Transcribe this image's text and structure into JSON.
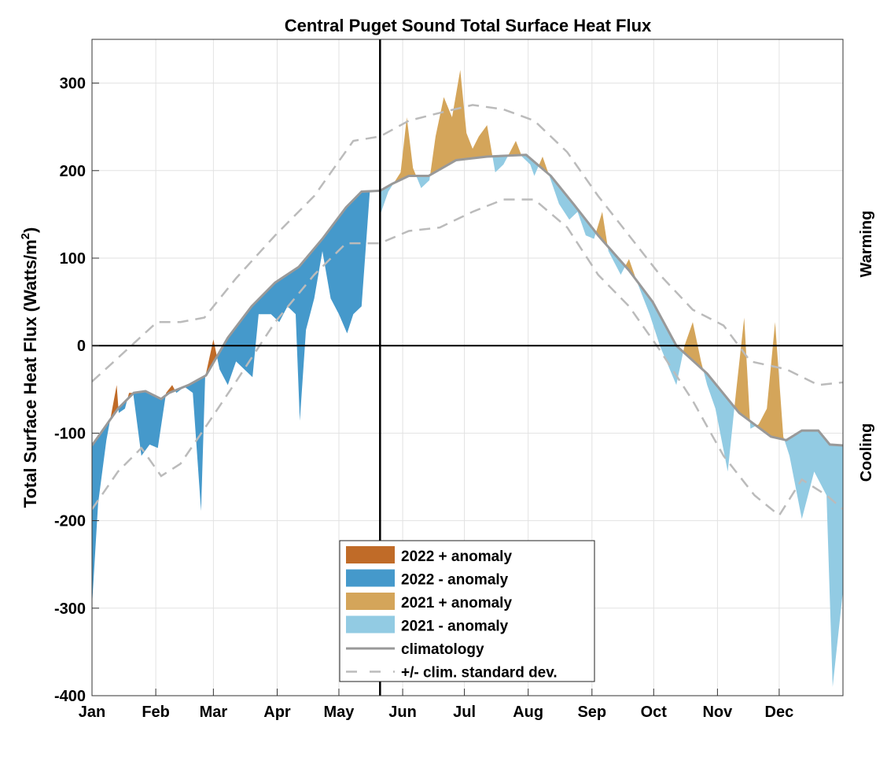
{
  "chart_data": {
    "type": "area",
    "title": "Central Puget Sound Total Surface Heat Flux",
    "ylabel": "Total Surface Heat Flux (Watts/m²)",
    "ylabel_main": "Total Surface Heat Flux (Watts/m",
    "ylabel_sup": "2",
    "ylabel_end": ")",
    "xlabel": "",
    "right_labels": {
      "warming": "Warming",
      "cooling": "Cooling"
    },
    "ylim": [
      -400,
      350
    ],
    "xlim": [
      0,
      365
    ],
    "yticks": [
      -400,
      -300,
      -200,
      -100,
      0,
      100,
      200,
      300
    ],
    "xticks": [
      {
        "day": 0,
        "label": "Jan"
      },
      {
        "day": 31,
        "label": "Feb"
      },
      {
        "day": 59,
        "label": "Mar"
      },
      {
        "day": 90,
        "label": "Apr"
      },
      {
        "day": 120,
        "label": "May"
      },
      {
        "day": 151,
        "label": "Jun"
      },
      {
        "day": 181,
        "label": "Jul"
      },
      {
        "day": 212,
        "label": "Aug"
      },
      {
        "day": 243,
        "label": "Sep"
      },
      {
        "day": 273,
        "label": "Oct"
      },
      {
        "day": 304,
        "label": "Nov"
      },
      {
        "day": 334,
        "label": "Dec"
      }
    ],
    "grid": true,
    "divider_day": 140,
    "colors": {
      "pos2022": "#C06B28",
      "neg2022": "#4599CB",
      "pos2021": "#D4A55A",
      "neg2021": "#92CBE3",
      "clim": "#999999",
      "std": "#BBBBBB"
    },
    "legend": {
      "placement": "bottom-center",
      "entries": [
        "2022 + anomaly",
        "2022 - anomaly",
        "2021 + anomaly",
        "2021 - anomaly",
        "climatology",
        "+/- clim. standard dev."
      ]
    },
    "climatology": [
      [
        0,
        -114
      ],
      [
        12.6,
        -72
      ],
      [
        20.3,
        -54
      ],
      [
        26,
        -52
      ],
      [
        33.6,
        -61
      ],
      [
        37.5,
        -54
      ],
      [
        47,
        -45
      ],
      [
        55.4,
        -34
      ],
      [
        66,
        9
      ],
      [
        77.6,
        45
      ],
      [
        89,
        72
      ],
      [
        100.5,
        90
      ],
      [
        112,
        122
      ],
      [
        123.5,
        158
      ],
      [
        131,
        176
      ],
      [
        140,
        177
      ],
      [
        146,
        185
      ],
      [
        154,
        194
      ],
      [
        163.6,
        194
      ],
      [
        177,
        212
      ],
      [
        192,
        216
      ],
      [
        211,
        218
      ],
      [
        223,
        194
      ],
      [
        234,
        162
      ],
      [
        246,
        126
      ],
      [
        261,
        86
      ],
      [
        272.5,
        50
      ],
      [
        284,
        0
      ],
      [
        299,
        -32
      ],
      [
        314.6,
        -77
      ],
      [
        330,
        -104
      ],
      [
        337.5,
        -108
      ],
      [
        345,
        -97
      ],
      [
        353,
        -97
      ],
      [
        358.6,
        -113
      ],
      [
        365,
        -114
      ]
    ],
    "std_upper": [
      [
        0,
        -41
      ],
      [
        12.6,
        -14
      ],
      [
        31.6,
        27
      ],
      [
        43,
        27
      ],
      [
        54.6,
        32
      ],
      [
        70,
        77
      ],
      [
        89,
        126
      ],
      [
        108,
        171
      ],
      [
        127,
        234
      ],
      [
        140,
        239
      ],
      [
        154,
        257
      ],
      [
        169,
        266
      ],
      [
        185,
        275
      ],
      [
        200,
        270
      ],
      [
        215,
        257
      ],
      [
        231,
        221
      ],
      [
        246,
        171
      ],
      [
        261,
        126
      ],
      [
        276,
        81
      ],
      [
        292,
        41
      ],
      [
        307,
        23
      ],
      [
        320,
        -18
      ],
      [
        337.5,
        -27
      ],
      [
        353,
        -45
      ],
      [
        365,
        -42
      ]
    ],
    "std_lower": [
      [
        0,
        -187
      ],
      [
        12.6,
        -144
      ],
      [
        24,
        -117
      ],
      [
        33.6,
        -149
      ],
      [
        43,
        -135
      ],
      [
        54.6,
        -95
      ],
      [
        70,
        -41
      ],
      [
        89,
        27
      ],
      [
        108,
        81
      ],
      [
        123.5,
        117
      ],
      [
        140,
        117
      ],
      [
        154,
        131
      ],
      [
        169,
        135
      ],
      [
        185,
        153
      ],
      [
        200,
        167
      ],
      [
        215,
        167
      ],
      [
        231,
        135
      ],
      [
        246,
        81
      ],
      [
        261,
        45
      ],
      [
        276,
        -5
      ],
      [
        292,
        -63
      ],
      [
        307,
        -126
      ],
      [
        322,
        -171
      ],
      [
        334,
        -194
      ],
      [
        345,
        -153
      ],
      [
        357,
        -171
      ],
      [
        365,
        -187
      ]
    ],
    "series_2022": [
      [
        0,
        -297
      ],
      [
        3,
        -180
      ],
      [
        7,
        -108
      ],
      [
        12,
        -45
      ],
      [
        13,
        -77
      ],
      [
        16,
        -72
      ],
      [
        18,
        -54
      ],
      [
        20,
        -54
      ],
      [
        24,
        -126
      ],
      [
        28,
        -113
      ],
      [
        32,
        -117
      ],
      [
        36,
        -54
      ],
      [
        39,
        -45
      ],
      [
        41,
        -54
      ],
      [
        45,
        -47
      ],
      [
        49,
        -54
      ],
      [
        53,
        -189
      ],
      [
        55,
        -36
      ],
      [
        59,
        7
      ],
      [
        62,
        -27
      ],
      [
        66,
        -45
      ],
      [
        70,
        -18
      ],
      [
        74,
        -27
      ],
      [
        78,
        -36
      ],
      [
        81,
        36
      ],
      [
        87,
        36
      ],
      [
        91,
        27
      ],
      [
        95,
        45
      ],
      [
        99,
        36
      ],
      [
        101,
        -86
      ],
      [
        104,
        18
      ],
      [
        108,
        54
      ],
      [
        112,
        108
      ],
      [
        116,
        54
      ],
      [
        120,
        36
      ],
      [
        124,
        14
      ],
      [
        127,
        36
      ],
      [
        131,
        45
      ],
      [
        135,
        175
      ],
      [
        140,
        177
      ]
    ],
    "series_2021": [
      [
        140,
        149
      ],
      [
        144,
        176
      ],
      [
        150,
        198
      ],
      [
        153,
        261
      ],
      [
        156,
        203
      ],
      [
        160,
        180
      ],
      [
        164,
        189
      ],
      [
        167,
        239
      ],
      [
        171,
        284
      ],
      [
        175,
        261
      ],
      [
        179,
        315
      ],
      [
        182,
        243
      ],
      [
        185,
        225
      ],
      [
        188,
        239
      ],
      [
        192,
        252
      ],
      [
        196,
        198
      ],
      [
        200,
        207
      ],
      [
        206,
        234
      ],
      [
        209,
        216
      ],
      [
        213,
        207
      ],
      [
        215,
        194
      ],
      [
        219,
        216
      ],
      [
        223,
        189
      ],
      [
        227,
        162
      ],
      [
        232,
        144
      ],
      [
        236,
        153
      ],
      [
        240,
        126
      ],
      [
        244,
        122
      ],
      [
        248,
        153
      ],
      [
        251,
        108
      ],
      [
        257,
        81
      ],
      [
        261,
        99
      ],
      [
        265,
        72
      ],
      [
        271,
        36
      ],
      [
        276,
        0
      ],
      [
        284,
        -45
      ],
      [
        288,
        0
      ],
      [
        292,
        27
      ],
      [
        296,
        -18
      ],
      [
        299,
        -45
      ],
      [
        303,
        -72
      ],
      [
        309,
        -144
      ],
      [
        313,
        -54
      ],
      [
        317,
        32
      ],
      [
        320,
        -95
      ],
      [
        324,
        -90
      ],
      [
        328,
        -72
      ],
      [
        332,
        27
      ],
      [
        336,
        -104
      ],
      [
        339,
        -126
      ],
      [
        345,
        -198
      ],
      [
        351,
        -144
      ],
      [
        357,
        -171
      ],
      [
        360,
        -390
      ],
      [
        365,
        -280
      ]
    ]
  }
}
